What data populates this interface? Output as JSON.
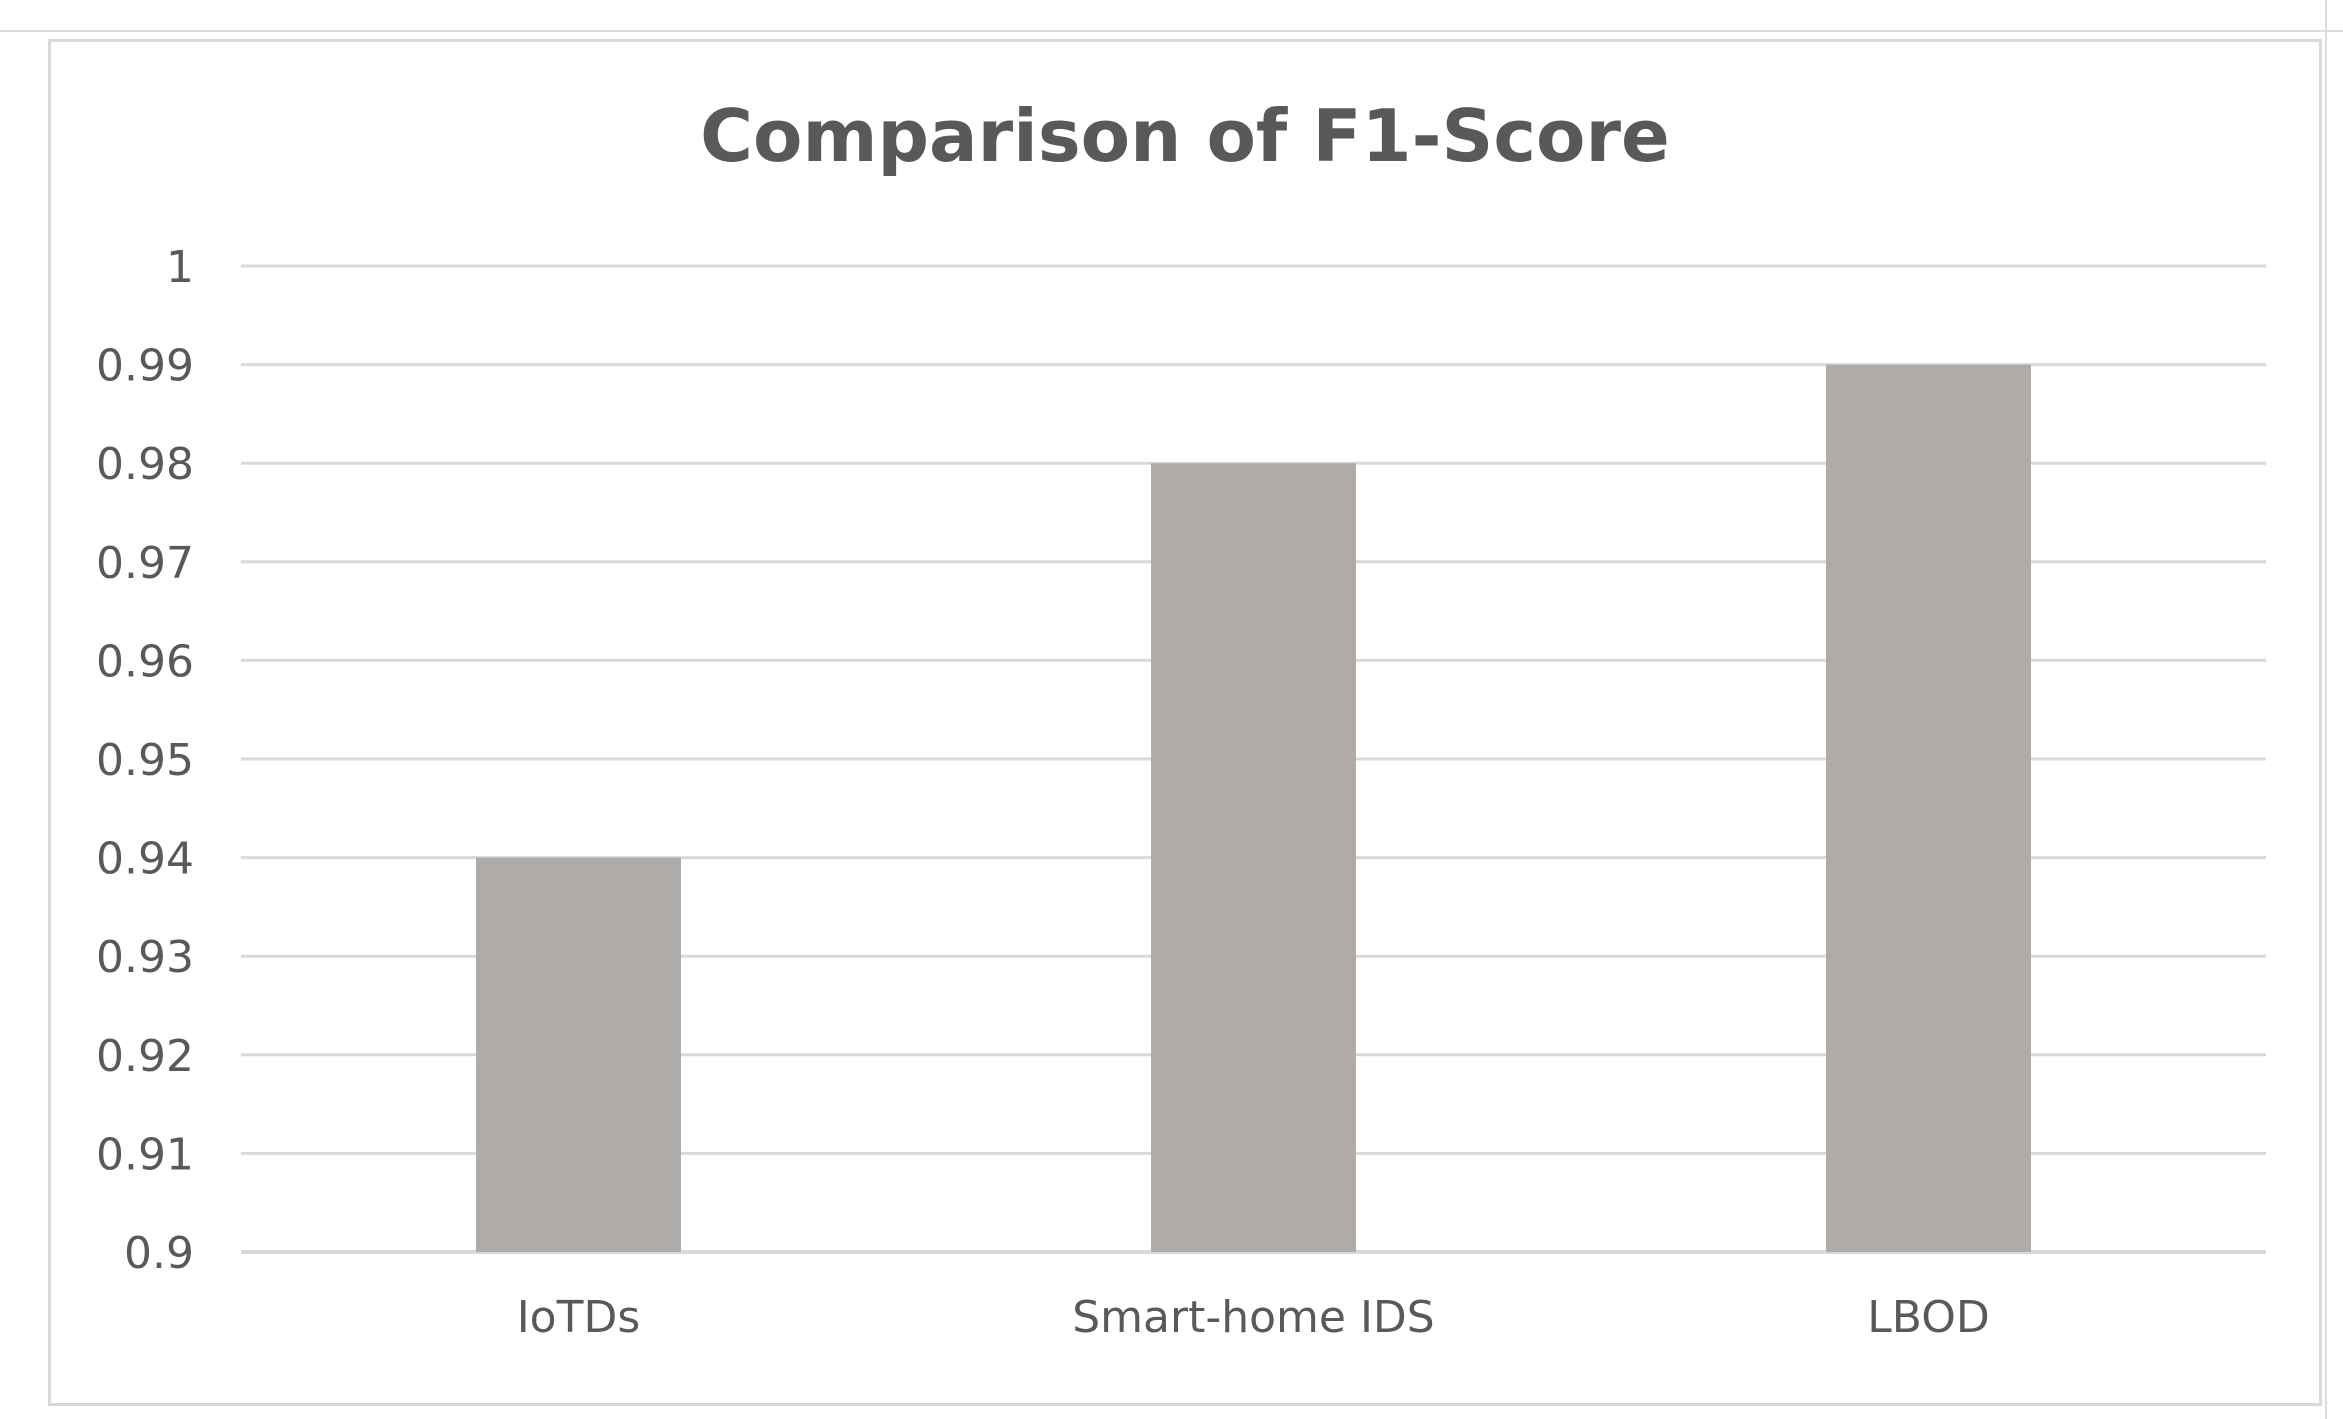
{
  "chart_data": {
    "type": "bar",
    "title": "Comparison of F1-Score",
    "categories": [
      "IoTDs",
      "Smart-home IDS",
      "LBOD"
    ],
    "values": [
      0.94,
      0.98,
      0.99
    ],
    "xlabel": "",
    "ylabel": "",
    "ylim": [
      0.9,
      1.0
    ],
    "yticks": [
      "0.9",
      "0.91",
      "0.92",
      "0.93",
      "0.94",
      "0.95",
      "0.96",
      "0.97",
      "0.98",
      "0.99",
      "1"
    ],
    "grid": true,
    "legend": "none",
    "bar_color": "#afaba9",
    "gridline_color": "#d9d9d9",
    "text_color": "#595959"
  }
}
